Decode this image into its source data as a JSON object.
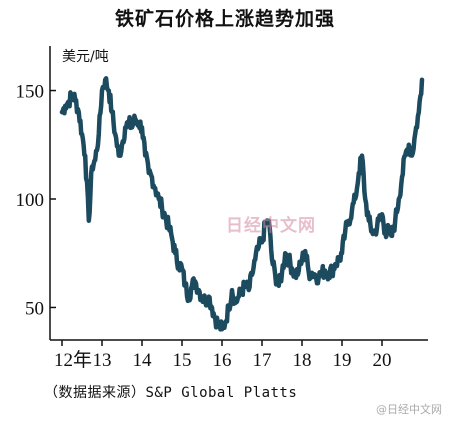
{
  "title": "铁矿石价格上涨趋势加强",
  "unit_label": "美元/吨",
  "source": "（数据据来源）S&P Global Platts",
  "watermark_center": "日经中文网",
  "watermark_corner": "@日经中文网",
  "chart_data": {
    "type": "line",
    "title": "铁矿石价格上涨趋势加强",
    "ylabel": "美元/吨",
    "xlabel": "",
    "ylim": [
      35,
      165
    ],
    "xlim": [
      2012.0,
      2021.1
    ],
    "y_ticks": [
      50,
      100,
      150
    ],
    "x_tick_positions": [
      2012,
      2013,
      2014,
      2015,
      2016,
      2017,
      2018,
      2019,
      2020
    ],
    "x_tick_labels": [
      "12年",
      "13",
      "14",
      "15",
      "16",
      "17",
      "18",
      "19",
      "20"
    ],
    "grid": false,
    "line_color": "#1c4a5e",
    "series": [
      {
        "name": "",
        "x": [
          2012.0,
          2012.08,
          2012.17,
          2012.25,
          2012.33,
          2012.42,
          2012.5,
          2012.58,
          2012.67,
          2012.75,
          2012.83,
          2012.92,
          2013.0,
          2013.08,
          2013.17,
          2013.25,
          2013.33,
          2013.42,
          2013.5,
          2013.58,
          2013.67,
          2013.75,
          2013.83,
          2013.92,
          2014.0,
          2014.08,
          2014.17,
          2014.25,
          2014.33,
          2014.42,
          2014.5,
          2014.58,
          2014.67,
          2014.75,
          2014.83,
          2014.92,
          2015.0,
          2015.08,
          2015.17,
          2015.25,
          2015.33,
          2015.42,
          2015.5,
          2015.58,
          2015.67,
          2015.75,
          2015.83,
          2015.92,
          2016.0,
          2016.08,
          2016.17,
          2016.25,
          2016.33,
          2016.42,
          2016.5,
          2016.58,
          2016.67,
          2016.75,
          2016.83,
          2016.92,
          2017.0,
          2017.08,
          2017.17,
          2017.25,
          2017.33,
          2017.42,
          2017.5,
          2017.58,
          2017.67,
          2017.75,
          2017.83,
          2017.92,
          2018.0,
          2018.08,
          2018.17,
          2018.25,
          2018.33,
          2018.42,
          2018.5,
          2018.58,
          2018.67,
          2018.75,
          2018.83,
          2018.92,
          2019.0,
          2019.08,
          2019.17,
          2019.25,
          2019.33,
          2019.42,
          2019.5,
          2019.58,
          2019.67,
          2019.75,
          2019.83,
          2019.92,
          2020.0,
          2020.08,
          2020.17,
          2020.25,
          2020.33,
          2020.42,
          2020.5,
          2020.58,
          2020.67,
          2020.75,
          2020.83,
          2020.92,
          2021.0
        ],
        "values": [
          140,
          143,
          145,
          148,
          146,
          140,
          130,
          120,
          90,
          115,
          118,
          130,
          150,
          155,
          150,
          140,
          130,
          120,
          125,
          133,
          135,
          133,
          137,
          135,
          133,
          120,
          112,
          110,
          105,
          100,
          96,
          92,
          87,
          82,
          75,
          70,
          68,
          60,
          55,
          60,
          62,
          58,
          55,
          53,
          55,
          50,
          45,
          42,
          40,
          43,
          50,
          58,
          52,
          55,
          58,
          60,
          58,
          65,
          72,
          78,
          80,
          88,
          90,
          72,
          65,
          60,
          66,
          75,
          72,
          68,
          65,
          67,
          72,
          76,
          66,
          66,
          65,
          64,
          66,
          67,
          66,
          67,
          70,
          72,
          75,
          85,
          90,
          95,
          100,
          112,
          120,
          100,
          90,
          85,
          85,
          90,
          93,
          85,
          85,
          83,
          90,
          100,
          110,
          120,
          125,
          120,
          130,
          140,
          155
        ]
      }
    ]
  }
}
